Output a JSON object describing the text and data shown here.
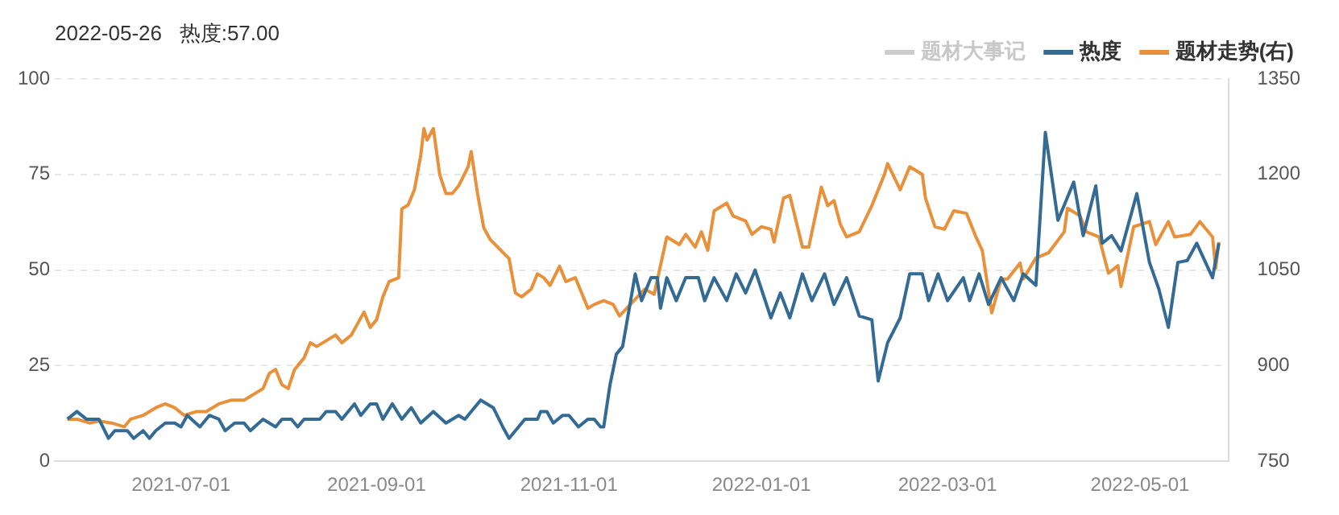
{
  "chart_data": {
    "type": "line",
    "title": "2022-05-26   热度:57.00",
    "legend": "top right",
    "grid": "y",
    "marker": "none",
    "line_style": "solid",
    "xlim": [
      "2021-05-22",
      "2022-05-29"
    ],
    "xticks": [
      "2021-07-01",
      "2021-09-01",
      "2021-11-01",
      "2022-01-01",
      "2022-03-01",
      "2022-05-01"
    ],
    "ylim": [
      0,
      100
    ],
    "yticks": [
      0,
      25,
      50,
      75,
      100
    ],
    "y2lim": [
      750,
      1350
    ],
    "y2ticks": [
      750,
      900,
      1050,
      1200,
      1350
    ],
    "series": [
      {
        "name": "题材大事记",
        "color": "#cccccc"
      },
      {
        "name": "热度",
        "color": "#336b94",
        "x": [
          "2021-05-26",
          "2021-05-29",
          "2021-06-01",
          "2021-06-05",
          "2021-06-08",
          "2021-06-10",
          "2021-06-14",
          "2021-06-16",
          "2021-06-19",
          "2021-06-21",
          "2021-06-23",
          "2021-06-26",
          "2021-06-29",
          "2021-07-01",
          "2021-07-03",
          "2021-07-07",
          "2021-07-10",
          "2021-07-13",
          "2021-07-15",
          "2021-07-18",
          "2021-07-21",
          "2021-07-23",
          "2021-07-27",
          "2021-07-31",
          "2021-08-02",
          "2021-08-05",
          "2021-08-07",
          "2021-08-09",
          "2021-08-14",
          "2021-08-16",
          "2021-08-19",
          "2021-08-21",
          "2021-08-25",
          "2021-08-27",
          "2021-08-30",
          "2021-09-01",
          "2021-09-03",
          "2021-09-06",
          "2021-09-09",
          "2021-09-12",
          "2021-09-15",
          "2021-09-19",
          "2021-09-23",
          "2021-09-27",
          "2021-09-29",
          "2021-10-04",
          "2021-10-08",
          "2021-10-11",
          "2021-10-13",
          "2021-10-16",
          "2021-10-18",
          "2021-10-22",
          "2021-10-23",
          "2021-10-25",
          "2021-10-27",
          "2021-10-30",
          "2021-11-01",
          "2021-11-04",
          "2021-11-07",
          "2021-11-09",
          "2021-11-11",
          "2021-11-12",
          "2021-11-14",
          "2021-11-16",
          "2021-11-18",
          "2021-11-22",
          "2021-11-24",
          "2021-11-27",
          "2021-11-29",
          "2021-11-30",
          "2021-12-02",
          "2021-12-05",
          "2021-12-08",
          "2021-12-12",
          "2021-12-14",
          "2021-12-17",
          "2021-12-21",
          "2021-12-24",
          "2021-12-27",
          "2021-12-30",
          "2022-01-04",
          "2022-01-07",
          "2022-01-10",
          "2022-01-14",
          "2022-01-17",
          "2022-01-21",
          "2022-01-24",
          "2022-01-28",
          "2022-02-01",
          "2022-02-05",
          "2022-02-07",
          "2022-02-10",
          "2022-02-14",
          "2022-02-17",
          "2022-02-21",
          "2022-02-23",
          "2022-02-26",
          "2022-03-01",
          "2022-03-06",
          "2022-03-08",
          "2022-03-11",
          "2022-03-14",
          "2022-03-18",
          "2022-03-22",
          "2022-03-25",
          "2022-03-29",
          "2022-04-01",
          "2022-04-05",
          "2022-04-10",
          "2022-04-13",
          "2022-04-17",
          "2022-04-19",
          "2022-04-22",
          "2022-04-25",
          "2022-04-30",
          "2022-05-04",
          "2022-05-07",
          "2022-05-10",
          "2022-05-13",
          "2022-05-16",
          "2022-05-19",
          "2022-05-24",
          "2022-05-26"
        ],
        "values": [
          11,
          13,
          11,
          11,
          6,
          8,
          8,
          6,
          8,
          6,
          8,
          10,
          10,
          9,
          12,
          9,
          12,
          11,
          8,
          10,
          10,
          8,
          11,
          9,
          11,
          11,
          9,
          11,
          11,
          13,
          13,
          11,
          15,
          12,
          15,
          15,
          11,
          15,
          11,
          14,
          10,
          13,
          10,
          12,
          11,
          16,
          14,
          9,
          6,
          9,
          11,
          11,
          13,
          13,
          10,
          12,
          12,
          9,
          11,
          11,
          9,
          9,
          20,
          28,
          30,
          49,
          42,
          48,
          48,
          40,
          48,
          42,
          48,
          48,
          42,
          48,
          42,
          49,
          44,
          50,
          37.5,
          44,
          37.5,
          49,
          42,
          49,
          41,
          48,
          38,
          37,
          21,
          31,
          37.5,
          49,
          49,
          42,
          49,
          42,
          48,
          42,
          49,
          41,
          48,
          42,
          49,
          46,
          86,
          63,
          73,
          59,
          72,
          57,
          59,
          55,
          70,
          52,
          45,
          35,
          52,
          52.5,
          57,
          48,
          57
        ]
      },
      {
        "name": "题材走势(右)",
        "color": "#e8913a",
        "axis": "y2",
        "x": [
          "2021-05-26",
          "2021-05-29",
          "2021-06-02",
          "2021-06-05",
          "2021-06-09",
          "2021-06-13",
          "2021-06-15",
          "2021-06-19",
          "2021-06-23",
          "2021-06-26",
          "2021-06-29",
          "2021-07-02",
          "2021-07-06",
          "2021-07-09",
          "2021-07-13",
          "2021-07-17",
          "2021-07-21",
          "2021-07-23",
          "2021-07-27",
          "2021-07-29",
          "2021-07-31",
          "2021-08-02",
          "2021-08-04",
          "2021-08-06",
          "2021-08-09",
          "2021-08-11",
          "2021-08-13",
          "2021-08-15",
          "2021-08-19",
          "2021-08-21",
          "2021-08-24",
          "2021-08-26",
          "2021-08-28",
          "2021-08-30",
          "2021-09-01",
          "2021-09-03",
          "2021-09-05",
          "2021-09-08",
          "2021-09-09",
          "2021-09-11",
          "2021-09-13",
          "2021-09-15",
          "2021-09-16",
          "2021-09-17",
          "2021-09-19",
          "2021-09-21",
          "2021-09-23",
          "2021-09-25",
          "2021-09-27",
          "2021-09-30",
          "2021-10-01",
          "2021-10-03",
          "2021-10-05",
          "2021-10-07",
          "2021-10-13",
          "2021-10-15",
          "2021-10-17",
          "2021-10-20",
          "2021-10-22",
          "2021-10-24",
          "2021-10-26",
          "2021-10-29",
          "2021-10-31",
          "2021-11-03",
          "2021-11-05",
          "2021-11-07",
          "2021-11-09",
          "2021-11-12",
          "2021-11-15",
          "2021-11-17",
          "2021-11-25",
          "2021-11-28",
          "2021-12-02",
          "2021-12-06",
          "2021-12-08",
          "2021-12-11",
          "2021-12-13",
          "2021-12-15",
          "2021-12-17",
          "2021-12-21",
          "2021-12-23",
          "2021-12-27",
          "2021-12-29",
          "2022-01-01",
          "2022-01-04",
          "2022-01-05",
          "2022-01-08",
          "2022-01-10",
          "2022-01-14",
          "2022-01-16",
          "2022-01-20",
          "2022-01-22",
          "2022-01-24",
          "2022-01-26",
          "2022-01-28",
          "2022-02-01",
          "2022-02-05",
          "2022-02-09",
          "2022-02-10",
          "2022-02-14",
          "2022-02-17",
          "2022-02-21",
          "2022-02-22",
          "2022-02-25",
          "2022-02-28",
          "2022-03-03",
          "2022-03-07",
          "2022-03-10",
          "2022-03-12",
          "2022-03-15",
          "2022-03-18",
          "2022-03-20",
          "2022-03-24",
          "2022-03-25",
          "2022-03-29",
          "2022-04-02",
          "2022-04-07",
          "2022-04-08",
          "2022-04-12",
          "2022-04-14",
          "2022-04-18",
          "2022-04-21",
          "2022-04-24",
          "2022-04-25",
          "2022-04-29",
          "2022-05-04",
          "2022-05-06",
          "2022-05-10",
          "2022-05-12",
          "2022-05-17",
          "2022-05-20",
          "2022-05-24",
          "2022-05-25",
          "2022-05-26"
        ],
        "values": [
          816,
          816,
          810,
          813,
          810,
          804,
          816,
          822,
          834,
          840,
          834,
          822,
          828,
          828,
          840,
          846,
          846,
          852,
          864,
          888,
          894,
          870,
          864,
          894,
          912,
          936,
          930,
          936,
          948,
          936,
          948,
          966,
          984,
          960,
          972,
          1008,
          1032,
          1038,
          1146,
          1152,
          1176,
          1230,
          1272,
          1254,
          1272,
          1200,
          1170,
          1170,
          1182,
          1212,
          1236,
          1170,
          1116,
          1098,
          1068,
          1014,
          1008,
          1020,
          1044,
          1038,
          1026,
          1056,
          1032,
          1038,
          1014,
          990,
          996,
          1002,
          996,
          978,
          1020,
          1012,
          1102,
          1090,
          1106,
          1086,
          1110,
          1081,
          1143,
          1155,
          1135,
          1127,
          1106,
          1118,
          1114,
          1094,
          1163,
          1167,
          1086,
          1086,
          1180,
          1151,
          1159,
          1122,
          1102,
          1110,
          1151,
          1200,
          1217,
          1176,
          1212,
          1200,
          1163,
          1118,
          1114,
          1143,
          1139,
          1102,
          1081,
          983,
          1036,
          1036,
          1061,
          1036,
          1069,
          1077,
          1110,
          1147,
          1135,
          1110,
          1102,
          1045,
          1057,
          1024,
          1118,
          1126,
          1090,
          1126,
          1102,
          1106,
          1126,
          1102,
          1053,
          1094
        ]
      }
    ]
  }
}
